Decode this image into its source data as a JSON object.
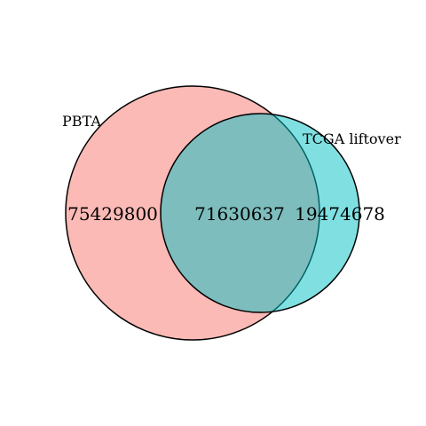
{
  "venn": {
    "sets": [
      {
        "name": "PBTA",
        "color": "#F8766D"
      },
      {
        "name": "TCGA liftover",
        "color": "#00BFC4"
      }
    ],
    "counts": {
      "pbta_only": "75429800",
      "both": "71630637",
      "tcga_only": "19474678"
    },
    "fill_opacity": 0.5,
    "stroke_color": "#000000"
  }
}
